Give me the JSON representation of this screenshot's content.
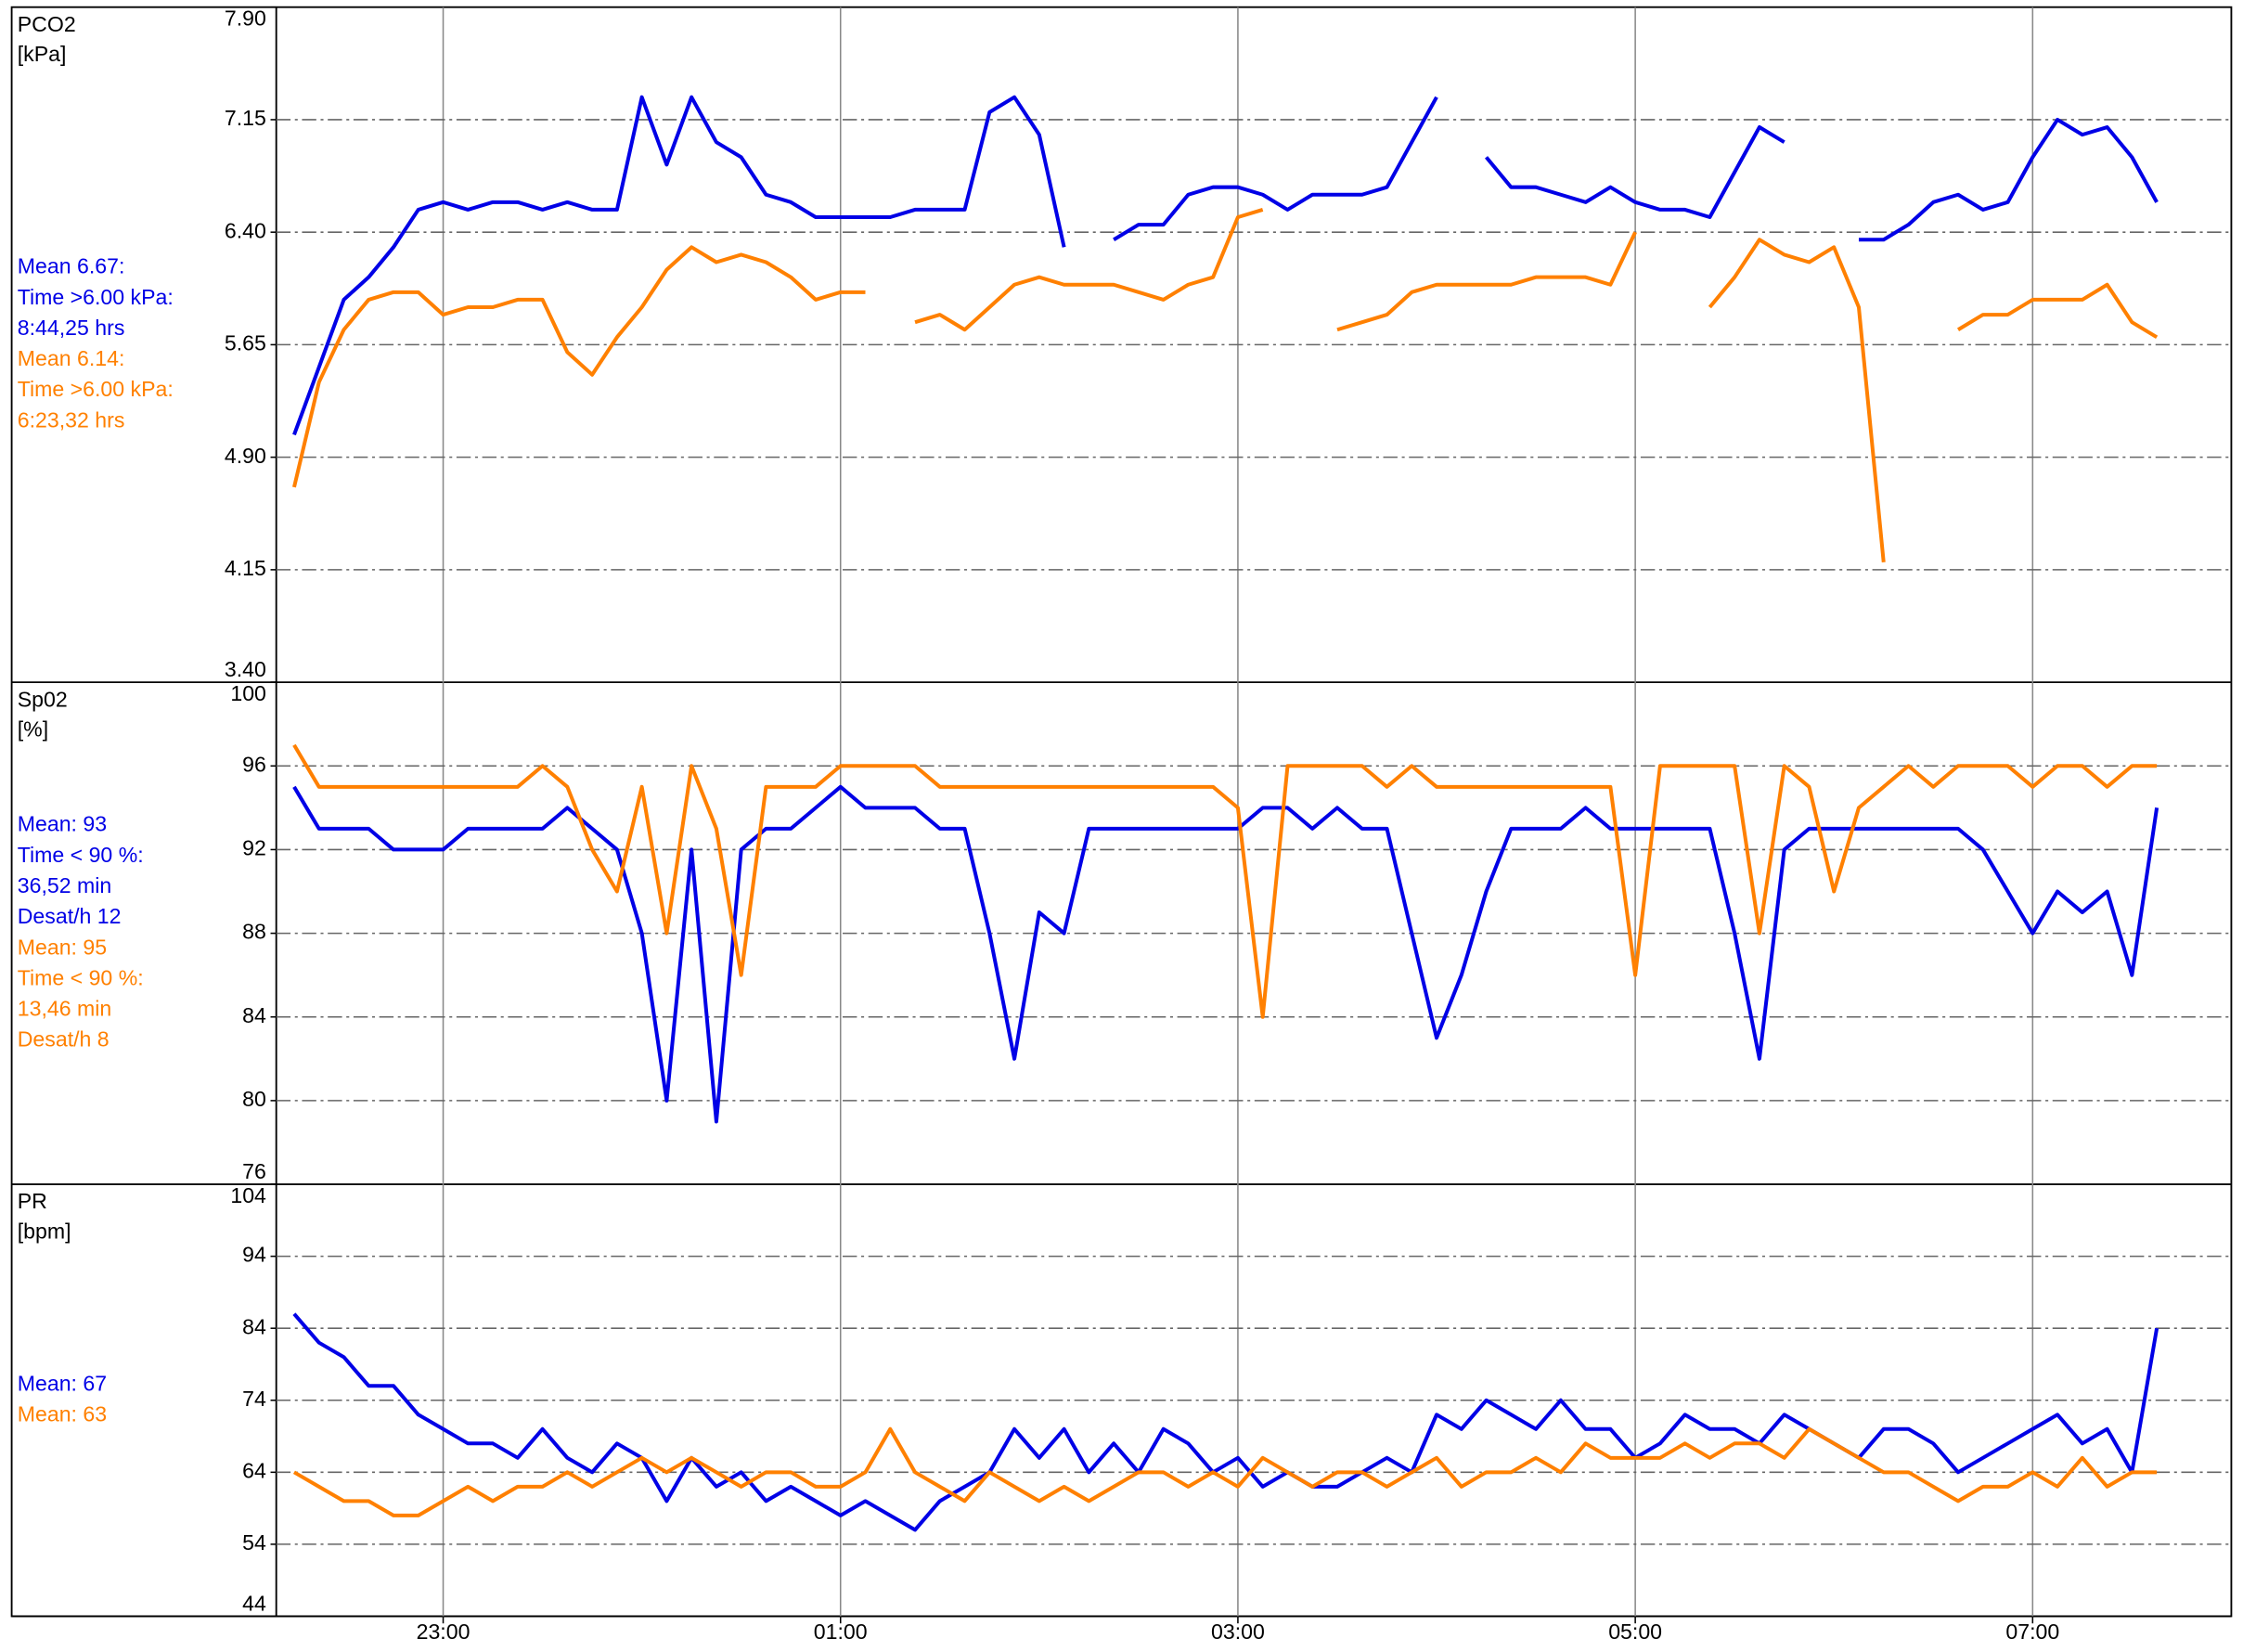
{
  "chart_data": [
    {
      "type": "line",
      "title": "PCO2",
      "unit": "[kPa]",
      "xlim": [
        22.16,
        32.0
      ],
      "x": [
        22.25,
        22.375,
        22.5,
        22.625,
        22.75,
        22.875,
        23,
        23.125,
        23.25,
        23.375,
        23.5,
        23.625,
        23.75,
        23.875,
        24,
        24.125,
        24.25,
        24.375,
        24.5,
        24.625,
        24.75,
        24.875,
        25,
        25.125,
        25.25,
        25.375,
        25.5,
        25.625,
        25.75,
        25.875,
        26,
        26.125,
        26.25,
        26.375,
        26.5,
        26.625,
        26.75,
        26.875,
        27,
        27.125,
        27.25,
        27.375,
        27.5,
        27.625,
        27.75,
        27.875,
        28,
        28.125,
        28.25,
        28.375,
        28.5,
        28.625,
        28.75,
        28.875,
        29,
        29.125,
        29.25,
        29.375,
        29.5,
        29.625,
        29.75,
        29.875,
        30,
        30.125,
        30.25,
        30.375,
        30.5,
        30.625,
        30.75,
        30.875,
        31,
        31.125,
        31.25,
        31.375,
        31.5,
        31.625
      ],
      "ylim": [
        3.4,
        7.9
      ],
      "yticks": [
        {
          "value": 3.4,
          "label": "3.40"
        },
        {
          "value": 4.15,
          "label": "4.15"
        },
        {
          "value": 4.9,
          "label": "4.90"
        },
        {
          "value": 5.65,
          "label": "5.65"
        },
        {
          "value": 6.4,
          "label": "6.40"
        },
        {
          "value": 7.15,
          "label": "7.15"
        },
        {
          "value": 7.9,
          "label": "7.90"
        }
      ],
      "grid": true,
      "series": [
        {
          "color": "#0000e6",
          "notes": [
            "Mean 6.67:",
            "Time >6.00 kPa:",
            "8:44,25 hrs"
          ],
          "values": [
            5.05,
            5.5,
            5.95,
            6.1,
            6.3,
            6.55,
            6.6,
            6.55,
            6.6,
            6.6,
            6.55,
            6.6,
            6.55,
            6.55,
            7.3,
            6.85,
            7.3,
            7.0,
            6.9,
            6.65,
            6.6,
            6.5,
            6.5,
            6.5,
            6.5,
            6.55,
            6.55,
            6.55,
            7.2,
            7.3,
            7.05,
            6.3,
            null,
            6.35,
            6.45,
            6.45,
            6.65,
            6.7,
            6.7,
            6.65,
            6.55,
            6.65,
            6.65,
            6.65,
            6.7,
            7.0,
            7.3,
            null,
            6.9,
            6.7,
            6.7,
            6.65,
            6.6,
            6.7,
            6.6,
            6.55,
            6.55,
            6.5,
            6.8,
            7.1,
            7.0,
            null,
            null,
            6.35,
            6.35,
            6.45,
            6.6,
            6.65,
            6.55,
            6.6,
            6.9,
            7.15,
            7.05,
            7.1,
            6.9,
            6.6
          ]
        },
        {
          "color": "#ff8000",
          "notes": [
            "Mean 6.14:",
            "Time >6.00 kPa:",
            "6:23,32 hrs"
          ],
          "values": [
            4.7,
            5.4,
            5.75,
            5.95,
            6.0,
            6.0,
            5.85,
            5.9,
            5.9,
            5.95,
            5.95,
            5.6,
            5.45,
            5.7,
            5.9,
            6.15,
            6.3,
            6.2,
            6.25,
            6.2,
            6.1,
            5.95,
            6.0,
            6.0,
            null,
            5.8,
            5.85,
            5.75,
            5.9,
            6.05,
            6.1,
            6.05,
            6.05,
            6.05,
            6.0,
            5.95,
            6.05,
            6.1,
            6.5,
            6.55,
            null,
            null,
            5.75,
            5.8,
            5.85,
            6.0,
            6.05,
            6.05,
            6.05,
            6.05,
            6.1,
            6.1,
            6.1,
            6.05,
            6.4,
            null,
            null,
            5.9,
            6.1,
            6.35,
            6.25,
            6.2,
            6.3,
            5.9,
            4.2,
            null,
            null,
            5.75,
            5.85,
            5.85,
            5.95,
            5.95,
            5.95,
            6.05,
            5.8,
            5.7
          ]
        }
      ]
    },
    {
      "type": "line",
      "title": "Sp02",
      "unit": "[%]",
      "xlim": [
        22.16,
        32.0
      ],
      "x": [
        22.25,
        22.375,
        22.5,
        22.625,
        22.75,
        22.875,
        23,
        23.125,
        23.25,
        23.375,
        23.5,
        23.625,
        23.75,
        23.875,
        24,
        24.125,
        24.25,
        24.375,
        24.5,
        24.625,
        24.75,
        24.875,
        25,
        25.125,
        25.25,
        25.375,
        25.5,
        25.625,
        25.75,
        25.875,
        26,
        26.125,
        26.25,
        26.375,
        26.5,
        26.625,
        26.75,
        26.875,
        27,
        27.125,
        27.25,
        27.375,
        27.5,
        27.625,
        27.75,
        27.875,
        28,
        28.125,
        28.25,
        28.375,
        28.5,
        28.625,
        28.75,
        28.875,
        29,
        29.125,
        29.25,
        29.375,
        29.5,
        29.625,
        29.75,
        29.875,
        30,
        30.125,
        30.25,
        30.375,
        30.5,
        30.625,
        30.75,
        30.875,
        31,
        31.125,
        31.25,
        31.375,
        31.5,
        31.625
      ],
      "ylim": [
        76,
        100
      ],
      "yticks": [
        76,
        80,
        84,
        88,
        92,
        96,
        100
      ],
      "grid": true,
      "series": [
        {
          "color": "#0000e6",
          "notes": [
            "Mean: 93",
            "Time < 90 %:",
            "36,52 min",
            "Desat/h 12"
          ],
          "values": [
            95,
            93,
            93,
            93,
            92,
            92,
            92,
            93,
            93,
            93,
            93,
            94,
            93,
            92,
            88,
            80,
            92,
            79,
            92,
            93,
            93,
            94,
            95,
            94,
            94,
            94,
            93,
            93,
            88,
            82,
            89,
            88,
            93,
            93,
            93,
            93,
            93,
            93,
            93,
            94,
            94,
            93,
            94,
            93,
            93,
            88,
            83,
            86,
            90,
            93,
            93,
            93,
            94,
            93,
            93,
            93,
            93,
            93,
            88,
            82,
            92,
            93,
            93,
            93,
            93,
            93,
            93,
            93,
            92,
            90,
            88,
            90,
            89,
            90,
            86,
            94
          ]
        },
        {
          "color": "#ff8000",
          "notes": [
            "Mean: 95",
            "Time < 90 %:",
            "13,46 min",
            "Desat/h 8"
          ],
          "values": [
            97,
            95,
            95,
            95,
            95,
            95,
            95,
            95,
            95,
            95,
            96,
            95,
            92,
            90,
            95,
            88,
            96,
            93,
            86,
            95,
            95,
            95,
            96,
            96,
            96,
            96,
            95,
            95,
            95,
            95,
            95,
            95,
            95,
            95,
            95,
            95,
            95,
            95,
            94,
            84,
            96,
            96,
            96,
            96,
            95,
            96,
            95,
            95,
            95,
            95,
            95,
            95,
            95,
            95,
            86,
            96,
            96,
            96,
            96,
            88,
            96,
            95,
            90,
            94,
            95,
            96,
            95,
            96,
            96,
            96,
            95,
            96,
            96,
            95,
            96,
            96
          ]
        }
      ]
    },
    {
      "type": "line",
      "title": "PR",
      "unit": "[bpm]",
      "xlim": [
        22.16,
        32.0
      ],
      "x": [
        22.25,
        22.375,
        22.5,
        22.625,
        22.75,
        22.875,
        23,
        23.125,
        23.25,
        23.375,
        23.5,
        23.625,
        23.75,
        23.875,
        24,
        24.125,
        24.25,
        24.375,
        24.5,
        24.625,
        24.75,
        24.875,
        25,
        25.125,
        25.25,
        25.375,
        25.5,
        25.625,
        25.75,
        25.875,
        26,
        26.125,
        26.25,
        26.375,
        26.5,
        26.625,
        26.75,
        26.875,
        27,
        27.125,
        27.25,
        27.375,
        27.5,
        27.625,
        27.75,
        27.875,
        28,
        28.125,
        28.25,
        28.375,
        28.5,
        28.625,
        28.75,
        28.875,
        29,
        29.125,
        29.25,
        29.375,
        29.5,
        29.625,
        29.75,
        29.875,
        30,
        30.125,
        30.25,
        30.375,
        30.5,
        30.625,
        30.75,
        30.875,
        31,
        31.125,
        31.25,
        31.375,
        31.5,
        31.625
      ],
      "ylim": [
        44,
        104
      ],
      "yticks": [
        44,
        54,
        64,
        74,
        84,
        94,
        104
      ],
      "xticks": [
        {
          "value": 23,
          "label": "23:00"
        },
        {
          "value": 25,
          "label": "01:00"
        },
        {
          "value": 27,
          "label": "03:00"
        },
        {
          "value": 29,
          "label": "05:00"
        },
        {
          "value": 31,
          "label": "07:00"
        }
      ],
      "grid": true,
      "series": [
        {
          "color": "#0000e6",
          "notes": [
            "Mean: 67"
          ],
          "values": [
            86,
            82,
            80,
            76,
            76,
            72,
            70,
            68,
            68,
            66,
            70,
            66,
            64,
            68,
            66,
            60,
            66,
            62,
            64,
            60,
            62,
            60,
            58,
            60,
            58,
            56,
            60,
            62,
            64,
            70,
            66,
            70,
            64,
            68,
            64,
            70,
            68,
            64,
            66,
            62,
            64,
            62,
            62,
            64,
            66,
            64,
            72,
            70,
            74,
            72,
            70,
            74,
            70,
            70,
            66,
            68,
            72,
            70,
            70,
            68,
            72,
            70,
            68,
            66,
            70,
            70,
            68,
            64,
            66,
            68,
            70,
            72,
            68,
            70,
            64,
            84
          ]
        },
        {
          "color": "#ff8000",
          "notes": [
            "Mean: 63"
          ],
          "values": [
            64,
            62,
            60,
            60,
            58,
            58,
            60,
            62,
            60,
            62,
            62,
            64,
            62,
            64,
            66,
            64,
            66,
            64,
            62,
            64,
            64,
            62,
            62,
            64,
            70,
            64,
            62,
            60,
            64,
            62,
            60,
            62,
            60,
            62,
            64,
            64,
            62,
            64,
            62,
            66,
            64,
            62,
            64,
            64,
            62,
            64,
            66,
            62,
            64,
            64,
            66,
            64,
            68,
            66,
            66,
            66,
            68,
            66,
            68,
            68,
            66,
            70,
            68,
            66,
            64,
            64,
            62,
            60,
            62,
            62,
            64,
            62,
            66,
            62,
            64,
            64
          ]
        }
      ]
    }
  ]
}
